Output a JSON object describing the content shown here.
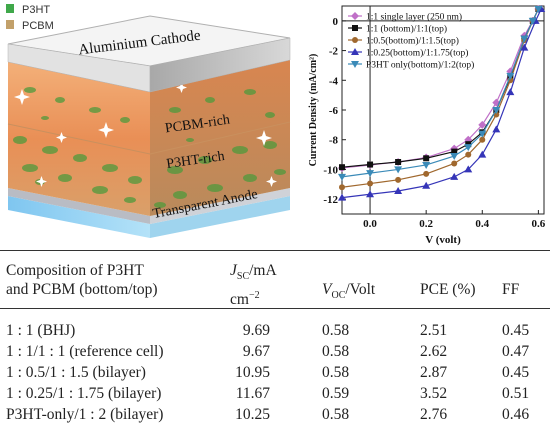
{
  "schematic": {
    "legend": [
      {
        "label": "P3HT",
        "color": "#3fa84a"
      },
      {
        "label": "PCBM",
        "color": "#c2a06a"
      }
    ],
    "layers": {
      "cathode": "Aluminium Cathode",
      "top": "PCBM-rich",
      "middle": "P3HT-rich",
      "anode": "Transparent Anode"
    }
  },
  "chart_data": {
    "type": "line",
    "xlabel": "V (volt)",
    "ylabel": "Current Density (mA/cm²)",
    "xlim": [
      -0.1,
      0.62
    ],
    "ylim": [
      -13,
      1
    ],
    "xticks": [
      "0.0",
      "0.2",
      "0.4",
      "0.6"
    ],
    "yticks": [
      "0",
      "-2",
      "-4",
      "-6",
      "-8",
      "-10",
      "-12"
    ],
    "legend_position": "top-left",
    "series": [
      {
        "name": "1:1 single layer (250 nm)",
        "color": "#c070c8",
        "marker": "diamond",
        "jsc": 9.69,
        "voc": 0.58,
        "x": [
          -0.1,
          0.0,
          0.1,
          0.2,
          0.3,
          0.35,
          0.4,
          0.45,
          0.5,
          0.55,
          0.58,
          0.6
        ],
        "y": [
          -9.9,
          -9.7,
          -9.5,
          -9.2,
          -8.6,
          -8.0,
          -7.0,
          -5.5,
          -3.4,
          -1.0,
          0.0,
          0.8
        ]
      },
      {
        "name": "1:1 (bottom)/1:1(top)",
        "color": "#111111",
        "marker": "square",
        "jsc": 9.67,
        "voc": 0.58,
        "x": [
          -0.1,
          0.0,
          0.1,
          0.2,
          0.3,
          0.35,
          0.4,
          0.45,
          0.5,
          0.55,
          0.58,
          0.6
        ],
        "y": [
          -9.85,
          -9.67,
          -9.5,
          -9.25,
          -8.8,
          -8.3,
          -7.5,
          -6.0,
          -3.8,
          -1.2,
          0.0,
          0.8
        ]
      },
      {
        "name": "1:0.5(bottom)/1:1.5(top)",
        "color": "#a0682e",
        "marker": "circle",
        "jsc": 10.95,
        "voc": 0.58,
        "x": [
          -0.1,
          0.0,
          0.1,
          0.2,
          0.3,
          0.35,
          0.4,
          0.45,
          0.5,
          0.55,
          0.58,
          0.6
        ],
        "y": [
          -11.2,
          -10.95,
          -10.7,
          -10.3,
          -9.6,
          -9.0,
          -8.0,
          -6.3,
          -4.0,
          -1.3,
          0.0,
          0.8
        ]
      },
      {
        "name": "1:0.25(bottom)/1:1.75(top)",
        "color": "#3535b8",
        "marker": "triangle-up",
        "jsc": 11.67,
        "voc": 0.59,
        "x": [
          -0.1,
          0.0,
          0.1,
          0.2,
          0.3,
          0.35,
          0.4,
          0.45,
          0.5,
          0.55,
          0.59,
          0.61
        ],
        "y": [
          -11.9,
          -11.67,
          -11.45,
          -11.1,
          -10.5,
          -10.0,
          -9.0,
          -7.3,
          -4.8,
          -1.8,
          0.0,
          0.8
        ]
      },
      {
        "name": "P3HT only(bottom)/1:2(top)",
        "color": "#3a8ab8",
        "marker": "triangle-down",
        "jsc": 10.25,
        "voc": 0.58,
        "x": [
          -0.1,
          0.0,
          0.1,
          0.2,
          0.3,
          0.35,
          0.4,
          0.45,
          0.5,
          0.55,
          0.58,
          0.6
        ],
        "y": [
          -10.5,
          -10.25,
          -10.0,
          -9.7,
          -9.1,
          -8.5,
          -7.6,
          -6.0,
          -3.7,
          -1.2,
          0.0,
          0.8
        ]
      }
    ]
  },
  "table": {
    "headers": {
      "comp_line1": "Composition of P3HT",
      "comp_line2": "and PCBM (bottom/top)",
      "jsc_sym": "J",
      "jsc_sub": "SC",
      "jsc_unit": "/mA",
      "jsc_line2": "cm",
      "jsc_exp": "−2",
      "voc_sym": "V",
      "voc_sub": "OC",
      "voc_unit": "/Volt",
      "pce": "PCE (%)",
      "ff": "FF"
    },
    "rows": [
      {
        "comp": "1 : 1 (BHJ)",
        "jsc": "9.69",
        "voc": "0.58",
        "pce": "2.51",
        "ff": "0.45"
      },
      {
        "comp": "1 : 1/1 : 1 (reference cell)",
        "jsc": "9.67",
        "voc": "0.58",
        "pce": "2.62",
        "ff": "0.47"
      },
      {
        "comp": "1 : 0.5/1 : 1.5 (bilayer)",
        "jsc": "10.95",
        "voc": "0.58",
        "pce": "2.87",
        "ff": "0.45"
      },
      {
        "comp": "1 : 0.25/1 : 1.75 (bilayer)",
        "jsc": "11.67",
        "voc": "0.59",
        "pce": "3.52",
        "ff": "0.51"
      },
      {
        "comp": "P3HT-only/1 : 2 (bilayer)",
        "jsc": "10.25",
        "voc": "0.58",
        "pce": "2.76",
        "ff": "0.46"
      }
    ]
  }
}
